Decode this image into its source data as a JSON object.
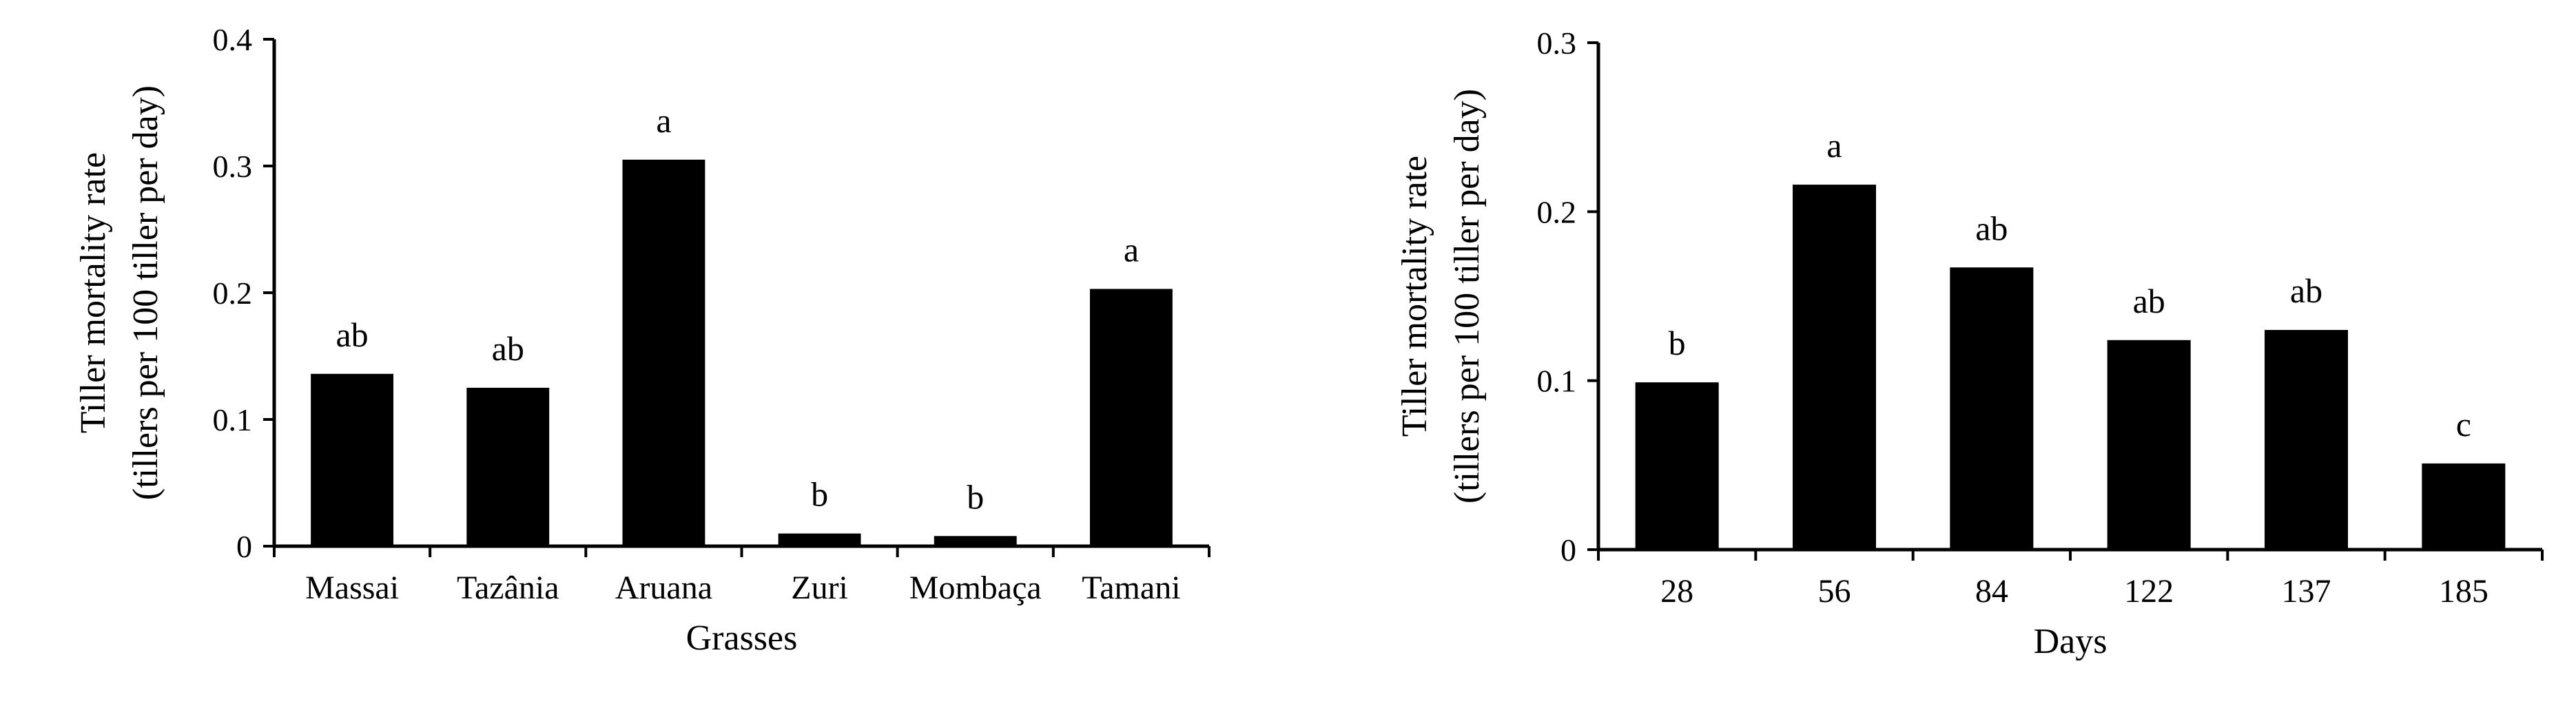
{
  "chart_data": [
    {
      "type": "bar",
      "title": "",
      "xlabel": "Grasses",
      "ylabel": "Tiller mortality rate",
      "ylabel_line2": "(tillers per 100 tiller per day)",
      "categories": [
        "Massai",
        "Tazânia",
        "Aruana",
        "Zuri",
        "Mombaça",
        "Tamani"
      ],
      "values": [
        0.136,
        0.125,
        0.305,
        0.01,
        0.008,
        0.203
      ],
      "data_labels": [
        "ab",
        "ab",
        "a",
        "b",
        "b",
        "a"
      ],
      "ylim": [
        0,
        0.4
      ],
      "yticks": [
        "0",
        "0.1",
        "0.2",
        "0.3",
        "0.4"
      ],
      "grid": false,
      "bar_color": "#000000"
    },
    {
      "type": "bar",
      "title": "",
      "xlabel": "Days",
      "ylabel": "Tiller mortality rate",
      "ylabel_line2": "(tillers per 100 tiller per day)",
      "categories": [
        "28",
        "56",
        "84",
        "122",
        "137",
        "185"
      ],
      "values": [
        0.099,
        0.216,
        0.167,
        0.124,
        0.13,
        0.051
      ],
      "data_labels": [
        "b",
        "a",
        "ab",
        "ab",
        "ab",
        "c"
      ],
      "ylim": [
        0,
        0.3
      ],
      "yticks": [
        "0",
        "0.1",
        "0.2",
        "0.3"
      ],
      "grid": false,
      "bar_color": "#000000"
    }
  ]
}
